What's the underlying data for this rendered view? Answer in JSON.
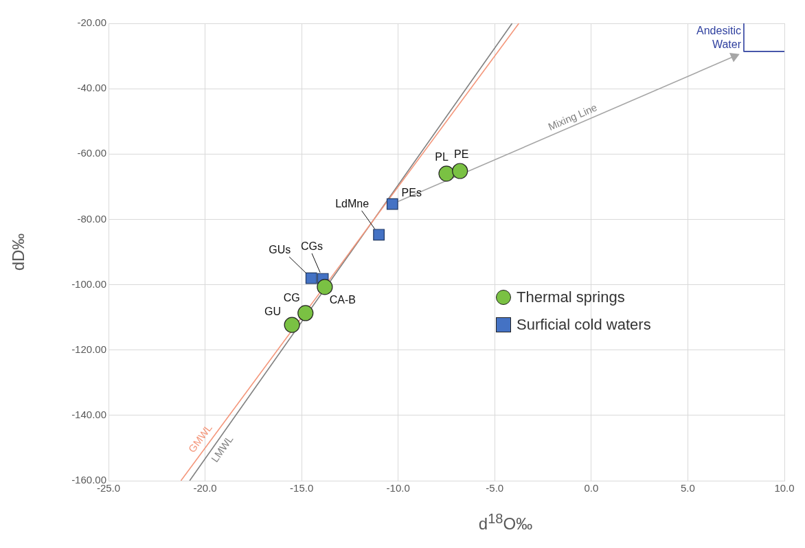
{
  "chart_data": {
    "type": "scatter",
    "xlabel": "d$^{18}$O‰",
    "ylabel": "dD‰",
    "xlim": [
      -25,
      10
    ],
    "ylim": [
      -160,
      -20
    ],
    "xticks": [
      {
        "value": -25,
        "label": "-25.0"
      },
      {
        "value": -20,
        "label": "-20.0"
      },
      {
        "value": -15,
        "label": "-15.0"
      },
      {
        "value": -10,
        "label": "-10.0"
      },
      {
        "value": -5,
        "label": "-5.0"
      },
      {
        "value": 0,
        "label": "0.0"
      },
      {
        "value": 5,
        "label": "5.0"
      },
      {
        "value": 10,
        "label": "10.0"
      }
    ],
    "yticks": [
      {
        "value": -160,
        "label": "-160.00"
      },
      {
        "value": -140,
        "label": "-140.00"
      },
      {
        "value": -120,
        "label": "-120.00"
      },
      {
        "value": -100,
        "label": "-100.00"
      },
      {
        "value": -80,
        "label": "-80.00"
      },
      {
        "value": -60,
        "label": "-60.00"
      },
      {
        "value": -40,
        "label": "-40.00"
      },
      {
        "value": -20,
        "label": "-20.00"
      }
    ],
    "grid": true,
    "legend": "right",
    "series": [
      {
        "name": "GMWL",
        "type": "line",
        "color": "#f4967a",
        "x": [
          -21.25,
          -3.75
        ],
        "values": [
          -160,
          -20
        ]
      },
      {
        "name": "LMWL",
        "type": "line",
        "color": "#7f7f7f",
        "x": [
          -20.8,
          -4.1
        ],
        "values": [
          -160,
          -20
        ]
      },
      {
        "name": "Mixing Line",
        "type": "line",
        "color": "#a6a6a6",
        "x": [
          -10.3,
          7.4
        ],
        "values": [
          -75.3,
          -30.1
        ]
      },
      {
        "name": "Andesitic Water",
        "type": "line",
        "color": "#2e3f9e",
        "x": [
          7.9,
          7.9,
          10
        ],
        "values": [
          -20,
          -28.6,
          -28.6
        ]
      },
      {
        "name": "Thermal springs",
        "marker": "circle",
        "color": "#7ac143",
        "x": [
          -15.5,
          -14.8,
          -13.8,
          -7.5,
          -6.8
        ],
        "values": [
          -112.3,
          -108.7,
          -100.7,
          -66.0,
          -65.2
        ]
      },
      {
        "name": "Surficial cold waters",
        "marker": "square",
        "color": "#4472c4",
        "x": [
          -14.5,
          -13.9,
          -11.0,
          -10.3
        ],
        "values": [
          -98.0,
          -98.2,
          -84.7,
          -75.3
        ]
      }
    ],
    "annotations": [
      {
        "text": "GU",
        "x": -15.5,
        "y": -112.3
      },
      {
        "text": "CG",
        "x": -14.8,
        "y": -108.7
      },
      {
        "text": "CA-B",
        "x": -13.8,
        "y": -100.7
      },
      {
        "text": "PL",
        "x": -7.5,
        "y": -66.0
      },
      {
        "text": "PE",
        "x": -6.8,
        "y": -65.2
      },
      {
        "text": "GUs",
        "x": -14.5,
        "y": -98.0
      },
      {
        "text": "CGs",
        "x": -13.9,
        "y": -98.2
      },
      {
        "text": "LdMne",
        "x": -11.0,
        "y": -84.7
      },
      {
        "text": "PEs",
        "x": -10.3,
        "y": -75.3
      }
    ]
  }
}
